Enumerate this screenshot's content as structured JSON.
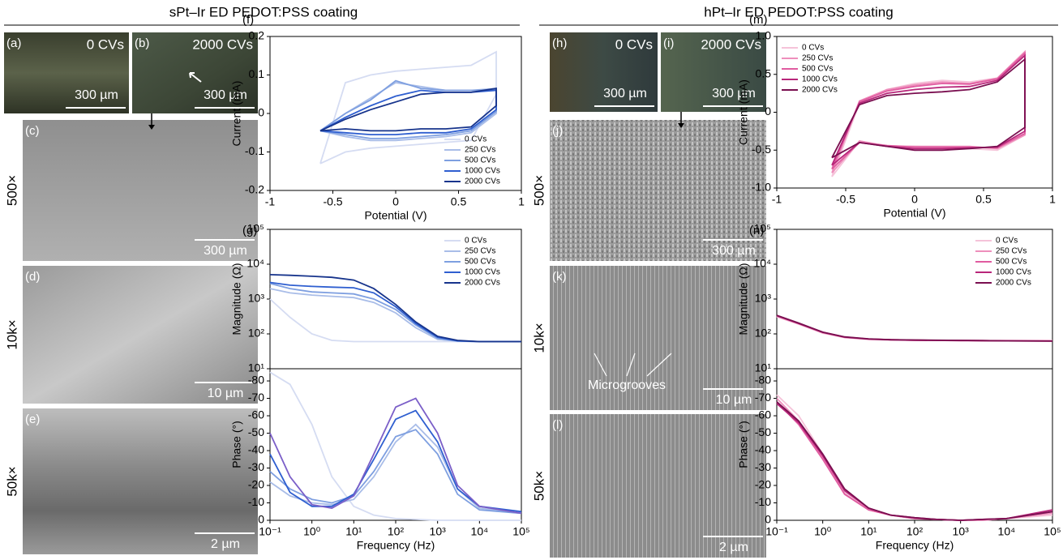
{
  "header": {
    "left_title": "sPt–Ir ED PEDOT:PSS coating",
    "right_title": "hPt–Ir ED PEDOT:PSS coating"
  },
  "panels": [
    {
      "label": "(a)",
      "caption": "0 CVs",
      "scale": "300 µm"
    },
    {
      "label": "(b)",
      "caption": "2000 CVs",
      "scale": "300 µm"
    },
    {
      "label": "(c)",
      "scale": "300 µm",
      "magnification": "500×"
    },
    {
      "label": "(d)",
      "scale": "10 µm",
      "magnification": "10k×"
    },
    {
      "label": "(e)",
      "scale": "2 µm",
      "magnification": "50k×"
    },
    {
      "label": "(h)",
      "caption": "0 CVs",
      "scale": "300 µm"
    },
    {
      "label": "(i)",
      "caption": "2000 CVs",
      "scale": "300 µm"
    },
    {
      "label": "(j)",
      "scale": "300 µm",
      "magnification": "500×"
    },
    {
      "label": "(k)",
      "scale": "10 µm",
      "magnification": "10k×",
      "annotation": "Microgrooves"
    },
    {
      "label": "(l)",
      "scale": "2 µm",
      "magnification": "50k×"
    }
  ],
  "chart_data": [
    {
      "type": "line",
      "panel_label": "(f)",
      "xlabel": "Potential (V)",
      "ylabel": "Current (mA)",
      "xlim": [
        -1,
        1
      ],
      "ylim": [
        -0.2,
        0.2
      ],
      "xticks": [
        -1,
        -0.5,
        0,
        0.5,
        1
      ],
      "yticks": [
        -0.2,
        -0.1,
        0,
        0.1,
        0.2
      ],
      "legend": "lower right",
      "x": [
        -0.6,
        -0.4,
        -0.2,
        0,
        0.2,
        0.4,
        0.6,
        0.8,
        0.8,
        0.6,
        0.4,
        0.2,
        0,
        -0.2,
        -0.4,
        -0.6
      ],
      "series": [
        {
          "name": "0 CVs",
          "color": "#d5dcf2",
          "values": [
            -0.13,
            0.08,
            0.1,
            0.11,
            0.115,
            0.12,
            0.125,
            0.16,
            0.05,
            -0.07,
            -0.075,
            -0.08,
            -0.085,
            -0.09,
            -0.1,
            -0.13
          ]
        },
        {
          "name": "250 CVs",
          "color": "#a9bde8",
          "values": [
            -0.045,
            0.0,
            0.04,
            0.08,
            0.07,
            0.06,
            0.06,
            0.065,
            0.0,
            -0.05,
            -0.06,
            -0.065,
            -0.07,
            -0.07,
            -0.06,
            -0.045
          ]
        },
        {
          "name": "500 CVs",
          "color": "#7e9fe0",
          "values": [
            -0.045,
            0.0,
            0.035,
            0.085,
            0.065,
            0.06,
            0.06,
            0.062,
            0.005,
            -0.045,
            -0.055,
            -0.06,
            -0.065,
            -0.065,
            -0.055,
            -0.045
          ]
        },
        {
          "name": "1000 CVs",
          "color": "#2f5fd0",
          "values": [
            -0.045,
            -0.01,
            0.02,
            0.045,
            0.06,
            0.055,
            0.055,
            0.06,
            0.01,
            -0.04,
            -0.05,
            -0.05,
            -0.055,
            -0.055,
            -0.05,
            -0.045
          ]
        },
        {
          "name": "2000 CVs",
          "color": "#17348c",
          "values": [
            -0.045,
            -0.015,
            0.01,
            0.03,
            0.05,
            0.055,
            0.055,
            0.065,
            0.02,
            -0.035,
            -0.04,
            -0.04,
            -0.045,
            -0.045,
            -0.04,
            -0.045
          ]
        }
      ]
    },
    {
      "type": "line",
      "panel_label": "(g)",
      "ylabel": "Magnitude (Ω)",
      "xlog": true,
      "ylog": true,
      "xlim": [
        0.1,
        100000
      ],
      "ylim": [
        10,
        100000
      ],
      "yticks": [
        {
          "value": 10,
          "label": "10¹"
        },
        {
          "value": 100,
          "label": "10²"
        },
        {
          "value": 1000,
          "label": "10³"
        },
        {
          "value": 10000,
          "label": "10⁴"
        },
        {
          "value": 100000,
          "label": "10⁵"
        }
      ],
      "legend": "upper right",
      "x": [
        0.1,
        0.3,
        1,
        3,
        10,
        30,
        100,
        300,
        1000,
        3000,
        10000,
        100000
      ],
      "series": [
        {
          "name": "0 CVs",
          "color": "#d5dcf2",
          "values": [
            1000,
            300,
            100,
            65,
            60,
            60,
            60,
            60,
            60,
            60,
            60,
            60
          ]
        },
        {
          "name": "250 CVs",
          "color": "#a9bde8",
          "values": [
            2000,
            1500,
            1300,
            1200,
            1100,
            800,
            400,
            150,
            70,
            62,
            60,
            60
          ]
        },
        {
          "name": "500 CVs",
          "color": "#7e9fe0",
          "values": [
            2800,
            2000,
            1600,
            1500,
            1400,
            1000,
            500,
            180,
            75,
            62,
            60,
            60
          ]
        },
        {
          "name": "1000 CVs",
          "color": "#2f5fd0",
          "values": [
            3000,
            2500,
            2300,
            2200,
            2100,
            1500,
            600,
            200,
            80,
            63,
            60,
            60
          ]
        },
        {
          "name": "2000 CVs",
          "color": "#17348c",
          "values": [
            5000,
            4800,
            4500,
            4200,
            3500,
            2000,
            700,
            220,
            85,
            65,
            60,
            60
          ]
        }
      ]
    },
    {
      "type": "line",
      "xlabel": "Frequency (Hz)",
      "ylabel": "Phase (°)",
      "xlog": true,
      "xlim": [
        0.1,
        100000
      ],
      "ylim": [
        0,
        -87
      ],
      "xticks": [
        {
          "value": 0.1,
          "label": "10⁻¹"
        },
        {
          "value": 1,
          "label": "10⁰"
        },
        {
          "value": 10,
          "label": "10¹"
        },
        {
          "value": 100,
          "label": "10²"
        },
        {
          "value": 1000,
          "label": "10³"
        },
        {
          "value": 10000,
          "label": "10⁴"
        },
        {
          "value": 100000,
          "label": "10⁵"
        }
      ],
      "yticks": [
        0,
        -10,
        -20,
        -30,
        -40,
        -50,
        -60,
        -70,
        -80
      ],
      "x": [
        0.1,
        0.3,
        1,
        3,
        10,
        30,
        100,
        300,
        1000,
        3000,
        10000,
        100000
      ],
      "series": [
        {
          "name": "0 CVs",
          "color": "#d5dcf2",
          "values": [
            -85,
            -78,
            -55,
            -25,
            -8,
            -3,
            -1,
            -0.5,
            0,
            0,
            0,
            0
          ]
        },
        {
          "name": "250 CVs",
          "color": "#a9bde8",
          "values": [
            -22,
            -14,
            -10,
            -9,
            -12,
            -25,
            -45,
            -55,
            -42,
            -18,
            -7,
            -4
          ]
        },
        {
          "name": "500 CVs",
          "color": "#7e9fe0",
          "values": [
            -28,
            -18,
            -12,
            -10,
            -14,
            -28,
            -48,
            -52,
            -38,
            -15,
            -6,
            -4
          ]
        },
        {
          "name": "1000 CVs",
          "color": "#2f5fd0",
          "values": [
            -38,
            -16,
            -8,
            -8,
            -15,
            -35,
            -58,
            -63,
            -45,
            -18,
            -8,
            -5
          ]
        },
        {
          "name": "2000 CVs",
          "color": "#7b5fc8",
          "values": [
            -50,
            -25,
            -9,
            -7,
            -14,
            -38,
            -65,
            -70,
            -50,
            -20,
            -8,
            -4
          ]
        }
      ]
    },
    {
      "type": "line",
      "panel_label": "(m)",
      "xlabel": "Potential (V)",
      "ylabel": "Current (mA)",
      "xlim": [
        -1,
        1
      ],
      "ylim": [
        -1,
        1
      ],
      "xticks": [
        -1,
        -0.5,
        0,
        0.5,
        1
      ],
      "yticks": [
        {
          "value": -1,
          "label": "-1.0"
        },
        -0.5,
        0,
        0.5,
        {
          "value": 1,
          "label": "1.0"
        }
      ],
      "legend": "upper left",
      "x": [
        -0.6,
        -0.4,
        -0.2,
        0,
        0.2,
        0.4,
        0.6,
        0.8,
        0.8,
        0.6,
        0.4,
        0.2,
        0,
        -0.2,
        -0.4,
        -0.6
      ],
      "series": [
        {
          "name": "0 CVs",
          "color": "#f5c3d9",
          "values": [
            -0.85,
            0.12,
            0.3,
            0.38,
            0.42,
            0.4,
            0.45,
            0.75,
            -0.3,
            -0.5,
            -0.48,
            -0.46,
            -0.45,
            -0.44,
            -0.38,
            -0.85
          ]
        },
        {
          "name": "250 CVs",
          "color": "#ee8fbc",
          "values": [
            -0.8,
            0.15,
            0.3,
            0.36,
            0.4,
            0.38,
            0.45,
            0.8,
            -0.3,
            -0.48,
            -0.45,
            -0.45,
            -0.45,
            -0.45,
            -0.38,
            -0.8
          ]
        },
        {
          "name": "500 CVs",
          "color": "#e05ca0",
          "values": [
            -0.75,
            0.14,
            0.28,
            0.34,
            0.38,
            0.37,
            0.44,
            0.78,
            -0.28,
            -0.47,
            -0.46,
            -0.46,
            -0.46,
            -0.44,
            -0.4,
            -0.75
          ]
        },
        {
          "name": "1000 CVs",
          "color": "#b8267a",
          "values": [
            -0.7,
            0.12,
            0.25,
            0.3,
            0.33,
            0.34,
            0.42,
            0.75,
            -0.25,
            -0.46,
            -0.47,
            -0.48,
            -0.48,
            -0.45,
            -0.4,
            -0.7
          ]
        },
        {
          "name": "2000 CVs",
          "color": "#7a0f50",
          "values": [
            -0.6,
            0.1,
            0.22,
            0.25,
            0.27,
            0.3,
            0.4,
            0.7,
            -0.2,
            -0.45,
            -0.48,
            -0.5,
            -0.5,
            -0.45,
            -0.4,
            -0.6
          ]
        }
      ]
    },
    {
      "type": "line",
      "panel_label": "(n)",
      "ylabel": "Magnitude (Ω)",
      "xlog": true,
      "ylog": true,
      "xlim": [
        0.1,
        100000
      ],
      "ylim": [
        10,
        100000
      ],
      "yticks": [
        {
          "value": 10,
          "label": "10¹"
        },
        {
          "value": 100,
          "label": "10²"
        },
        {
          "value": 1000,
          "label": "10³"
        },
        {
          "value": 10000,
          "label": "10⁴"
        },
        {
          "value": 100000,
          "label": "10⁵"
        }
      ],
      "legend": "upper right",
      "x": [
        0.1,
        0.3,
        1,
        3,
        10,
        30,
        100,
        300,
        1000,
        3000,
        10000,
        100000
      ],
      "series": [
        {
          "name": "0 CVs",
          "color": "#f5c3d9",
          "values": [
            310,
            190,
            105,
            78,
            70,
            67,
            66,
            65,
            65,
            64,
            64,
            64
          ]
        },
        {
          "name": "250 CVs",
          "color": "#ee8fbc",
          "values": [
            320,
            195,
            108,
            80,
            70,
            67,
            66,
            65,
            65,
            64,
            64,
            63
          ]
        },
        {
          "name": "500 CVs",
          "color": "#e05ca0",
          "values": [
            330,
            200,
            110,
            80,
            71,
            68,
            66,
            65,
            65,
            64,
            63,
            63
          ]
        },
        {
          "name": "1000 CVs",
          "color": "#b8267a",
          "values": [
            335,
            200,
            112,
            81,
            71,
            68,
            66,
            65,
            64,
            64,
            63,
            62
          ]
        },
        {
          "name": "2000 CVs",
          "color": "#7a0f50",
          "values": [
            340,
            205,
            112,
            82,
            72,
            68,
            67,
            66,
            65,
            64,
            63,
            62
          ]
        }
      ]
    },
    {
      "type": "line",
      "xlabel": "Frequency (Hz)",
      "ylabel": "Phase (°)",
      "xlog": true,
      "xlim": [
        0.1,
        100000
      ],
      "ylim": [
        0,
        -87
      ],
      "xticks": [
        {
          "value": 0.1,
          "label": "10⁻¹"
        },
        {
          "value": 1,
          "label": "10⁰"
        },
        {
          "value": 10,
          "label": "10¹"
        },
        {
          "value": 100,
          "label": "10²"
        },
        {
          "value": 1000,
          "label": "10³"
        },
        {
          "value": 10000,
          "label": "10⁴"
        },
        {
          "value": 100000,
          "label": "10⁵"
        }
      ],
      "yticks": [
        0,
        -10,
        -20,
        -30,
        -40,
        -50,
        -60,
        -70,
        -80
      ],
      "x": [
        0.1,
        0.3,
        1,
        3,
        10,
        30,
        100,
        300,
        1000,
        3000,
        10000,
        100000
      ],
      "series": [
        {
          "name": "0 CVs",
          "color": "#f5c3d9",
          "values": [
            -72,
            -60,
            -38,
            -16,
            -6,
            -3,
            -1,
            -0.5,
            0,
            0,
            -1,
            -3
          ]
        },
        {
          "name": "250 CVs",
          "color": "#ee8fbc",
          "values": [
            -70,
            -57,
            -36,
            -15,
            -6,
            -3,
            -1,
            -0.5,
            0,
            0,
            -1,
            -4
          ]
        },
        {
          "name": "500 CVs",
          "color": "#e05ca0",
          "values": [
            -68,
            -55,
            -35,
            -15,
            -6,
            -3,
            -1,
            -0.5,
            0,
            -0.5,
            -1,
            -5
          ]
        },
        {
          "name": "1000 CVs",
          "color": "#b8267a",
          "values": [
            -67,
            -56,
            -37,
            -17,
            -7,
            -3,
            -1.5,
            -0.5,
            0,
            -0.5,
            -1,
            -6
          ]
        },
        {
          "name": "2000 CVs",
          "color": "#7a0f50",
          "values": [
            -68,
            -57,
            -38,
            -18,
            -7,
            -3,
            -1.5,
            -0.5,
            0,
            -0.5,
            -1,
            -5
          ]
        }
      ]
    }
  ]
}
